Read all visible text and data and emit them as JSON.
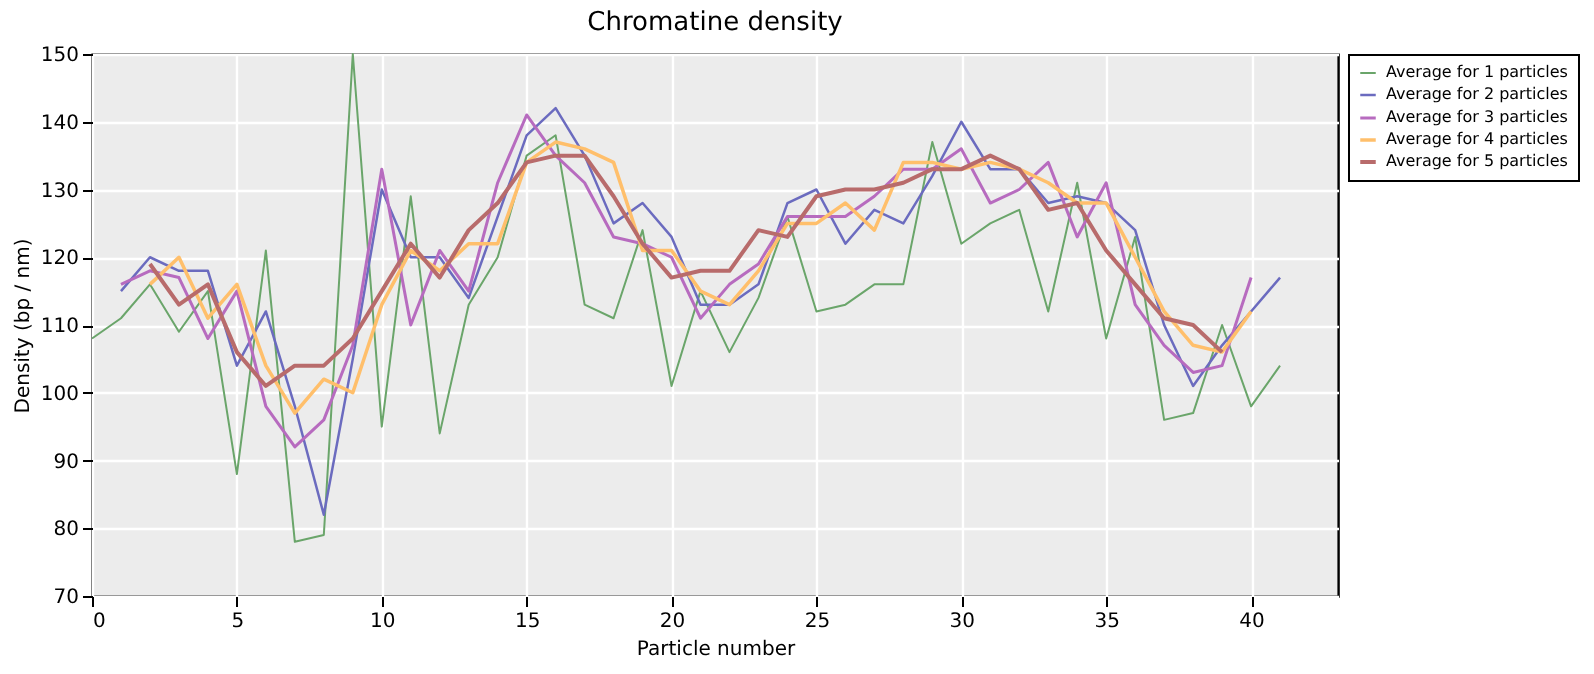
{
  "chart_data": {
    "type": "line",
    "title": "Chromatine density",
    "xlabel": "Particle number",
    "ylabel": "Density (bp / nm)",
    "xlim": [
      0,
      43
    ],
    "xticks": [
      0,
      5,
      10,
      15,
      20,
      25,
      30,
      35,
      40
    ],
    "ylim": [
      70,
      150
    ],
    "yticks": [
      70,
      80,
      90,
      100,
      110,
      120,
      130,
      140,
      150
    ],
    "grid": true,
    "legend": "right",
    "series": [
      {
        "name": "Average for 1 particles",
        "color": "#6aa56a",
        "x": [
          0,
          1,
          2,
          3,
          4,
          5,
          6,
          7,
          8,
          9,
          10,
          11,
          12,
          13,
          14,
          15,
          16,
          17,
          18,
          19,
          20,
          21,
          22,
          23,
          24,
          25,
          26,
          27,
          28,
          29,
          30,
          31,
          32,
          33,
          34,
          35,
          36,
          37,
          38,
          39,
          40,
          41
        ],
        "values": [
          108,
          111,
          116,
          109,
          115,
          88,
          121,
          78,
          79,
          150,
          95,
          129,
          94,
          113,
          120,
          135,
          138,
          113,
          111,
          124,
          101,
          115,
          106,
          114,
          126,
          112,
          113,
          116,
          116,
          137,
          122,
          125,
          127,
          112,
          131,
          108,
          123,
          96,
          97,
          110,
          98,
          104
        ]
      },
      {
        "name": "Average for 2 particles",
        "color": "#6b6bbf",
        "x": [
          1,
          2,
          3,
          4,
          5,
          6,
          7,
          8,
          9,
          10,
          11,
          12,
          13,
          14,
          15,
          16,
          17,
          18,
          19,
          20,
          21,
          22,
          23,
          24,
          25,
          26,
          27,
          28,
          29,
          30,
          31,
          32,
          33,
          34,
          35,
          36,
          37,
          38,
          39,
          40,
          41
        ],
        "values": [
          115,
          120,
          118,
          118,
          104,
          112,
          98,
          82,
          105,
          130,
          120,
          120,
          114,
          126,
          138,
          142,
          135,
          125,
          128,
          123,
          113,
          113,
          116,
          128,
          130,
          122,
          127,
          125,
          132,
          140,
          133,
          133,
          128,
          129,
          128,
          124,
          110,
          101,
          107,
          112,
          117
        ]
      },
      {
        "name": "Average for 3 particles",
        "color": "#b76bbf",
        "x": [
          1,
          2,
          3,
          4,
          5,
          6,
          7,
          8,
          9,
          10,
          11,
          12,
          13,
          14,
          15,
          16,
          17,
          18,
          19,
          20,
          21,
          22,
          23,
          24,
          25,
          26,
          27,
          28,
          29,
          30,
          31,
          32,
          33,
          34,
          35,
          36,
          37,
          38,
          39,
          40
        ],
        "values": [
          116,
          118,
          117,
          108,
          115,
          98,
          92,
          96,
          107,
          133,
          110,
          121,
          115,
          131,
          141,
          135,
          131,
          123,
          122,
          120,
          111,
          116,
          119,
          126,
          126,
          126,
          129,
          133,
          133,
          136,
          128,
          130,
          134,
          123,
          131,
          113,
          107,
          103,
          104,
          117
        ]
      },
      {
        "name": "Average for 4 particles",
        "color": "#ffbf6b",
        "x": [
          2,
          3,
          4,
          5,
          6,
          7,
          8,
          9,
          10,
          11,
          12,
          13,
          14,
          15,
          16,
          17,
          18,
          19,
          20,
          21,
          22,
          23,
          24,
          25,
          26,
          27,
          28,
          29,
          30,
          31,
          32,
          33,
          34,
          35,
          36,
          37,
          38,
          39,
          40
        ],
        "values": [
          116,
          120,
          111,
          116,
          104,
          97,
          102,
          100,
          113,
          121,
          118,
          122,
          122,
          134,
          137,
          136,
          134,
          121,
          121,
          115,
          113,
          118,
          125,
          125,
          128,
          124,
          134,
          134,
          133,
          134,
          133,
          131,
          128,
          128,
          120,
          112,
          107,
          106,
          112
        ]
      },
      {
        "name": "Average for 5 particles",
        "color": "#b86b6b",
        "x": [
          2,
          3,
          4,
          5,
          6,
          7,
          8,
          9,
          10,
          11,
          12,
          13,
          14,
          15,
          16,
          17,
          18,
          19,
          20,
          21,
          22,
          23,
          24,
          25,
          26,
          27,
          28,
          29,
          30,
          31,
          32,
          33,
          34,
          35,
          36,
          37,
          38,
          39
        ],
        "values": [
          119,
          113,
          116,
          106,
          101,
          104,
          104,
          108,
          115,
          122,
          117,
          124,
          128,
          134,
          135,
          135,
          129,
          122,
          117,
          118,
          118,
          124,
          123,
          129,
          130,
          130,
          131,
          133,
          133,
          135,
          133,
          127,
          128,
          121,
          116,
          111,
          110,
          106
        ]
      }
    ]
  }
}
